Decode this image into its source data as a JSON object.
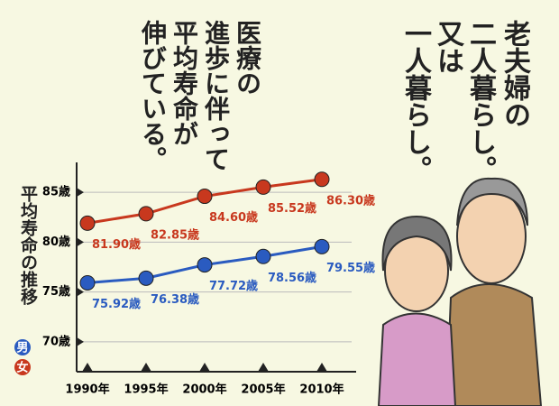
{
  "captions": {
    "right": [
      "老夫婦の",
      "二人暮らし。",
      "又は",
      "一人暮らし。"
    ],
    "left": [
      "医療の",
      "進歩に伴って",
      "平均寿命が",
      "伸びている。"
    ]
  },
  "chart_data": {
    "type": "line",
    "y_axis_label": "平均寿命の推移",
    "categories": [
      "1990年",
      "1995年",
      "2000年",
      "2005年",
      "2010年"
    ],
    "series": [
      {
        "name": "男",
        "color": "#2a5bc0",
        "values": [
          75.92,
          76.38,
          77.72,
          78.56,
          79.55
        ],
        "value_labels": [
          "75.92歳",
          "76.38歳",
          "77.72歳",
          "78.56歳",
          "79.55歳"
        ]
      },
      {
        "name": "女",
        "color": "#c8381e",
        "values": [
          81.9,
          82.85,
          84.6,
          85.52,
          86.3
        ],
        "value_labels": [
          "81.90歳",
          "82.85歳",
          "84.60歳",
          "85.52歳",
          "86.30歳"
        ]
      }
    ],
    "ylim": [
      67,
      88
    ],
    "yticks": [
      {
        "value": 70,
        "label": "70歳"
      },
      {
        "value": 75,
        "label": "75歳"
      },
      {
        "value": 80,
        "label": "80歳"
      },
      {
        "value": 85,
        "label": "85歳"
      }
    ],
    "grid": true
  }
}
